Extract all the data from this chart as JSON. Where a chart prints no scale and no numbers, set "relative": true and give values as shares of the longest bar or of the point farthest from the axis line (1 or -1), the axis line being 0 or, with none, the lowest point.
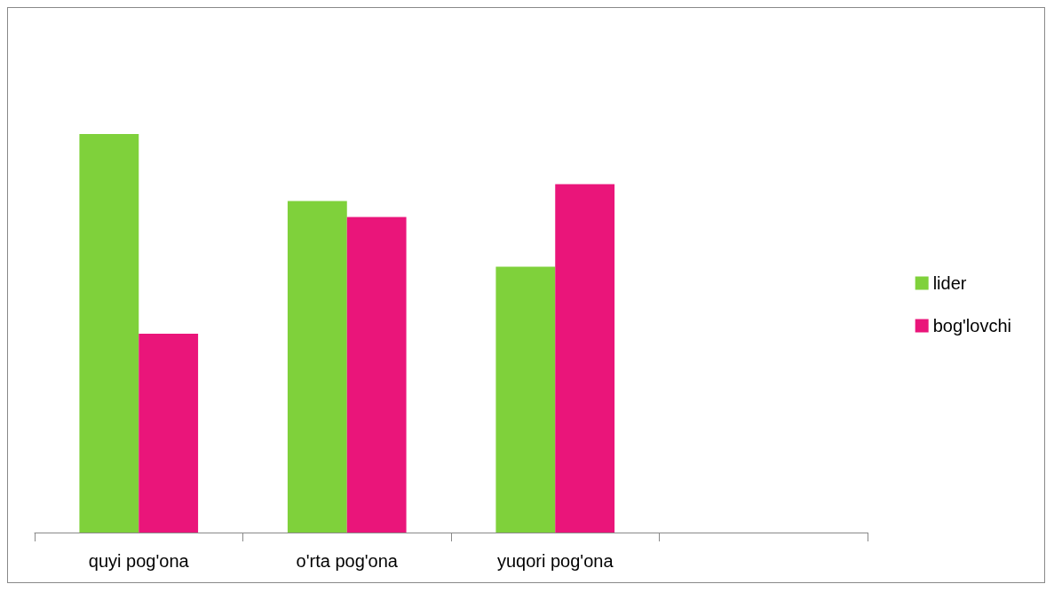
{
  "chart_data": {
    "type": "bar",
    "relative": true,
    "categories": [
      "quyi pog'ona",
      "o'rta pog'ona",
      "yuqori pog'ona",
      null
    ],
    "series": [
      {
        "name": "lider",
        "color": "#7fd13b",
        "values": [
          1,
          0.832,
          0.667,
          null
        ]
      },
      {
        "name": "bog'lovchi",
        "color": "#ea157a",
        "values": [
          0.499,
          0.792,
          0.874,
          null
        ]
      }
    ],
    "legend": "right"
  }
}
